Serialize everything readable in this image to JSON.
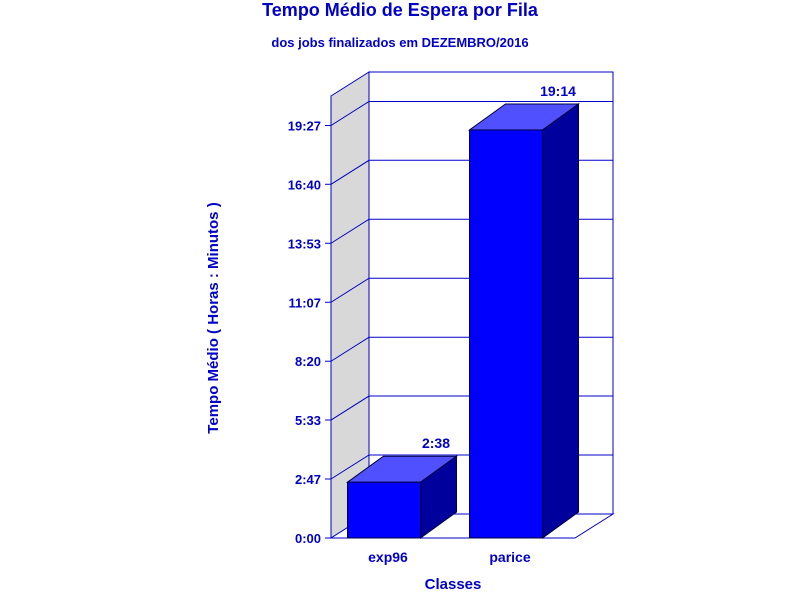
{
  "chart_data": {
    "type": "bar",
    "title": "Tempo Médio de Espera por Fila",
    "subtitle": "dos jobs finalizados em DEZEMBRO/2016",
    "xlabel": "Classes",
    "ylabel": "Tempo Médio ( Horas : Minutos )",
    "categories": [
      "exp96",
      "parice"
    ],
    "values": [
      2.63,
      19.23
    ],
    "value_labels": [
      "2:38",
      "19:14"
    ],
    "yticks": [
      0,
      2.78,
      5.56,
      8.33,
      11.11,
      13.89,
      16.67,
      19.44
    ],
    "ytick_labels": [
      "0:00",
      "2:47",
      "5:33",
      "8:20",
      "11:07",
      "13:53",
      "16:40",
      "19:27"
    ],
    "ylim": [
      0,
      20.83
    ],
    "grid": true,
    "colors": {
      "bar_front": "#0000ff",
      "bar_top": "#5050ff",
      "bar_side": "#00009c",
      "text": "#0000c8",
      "wall": "#d8d8d8",
      "frame": "#0000c8"
    }
  }
}
